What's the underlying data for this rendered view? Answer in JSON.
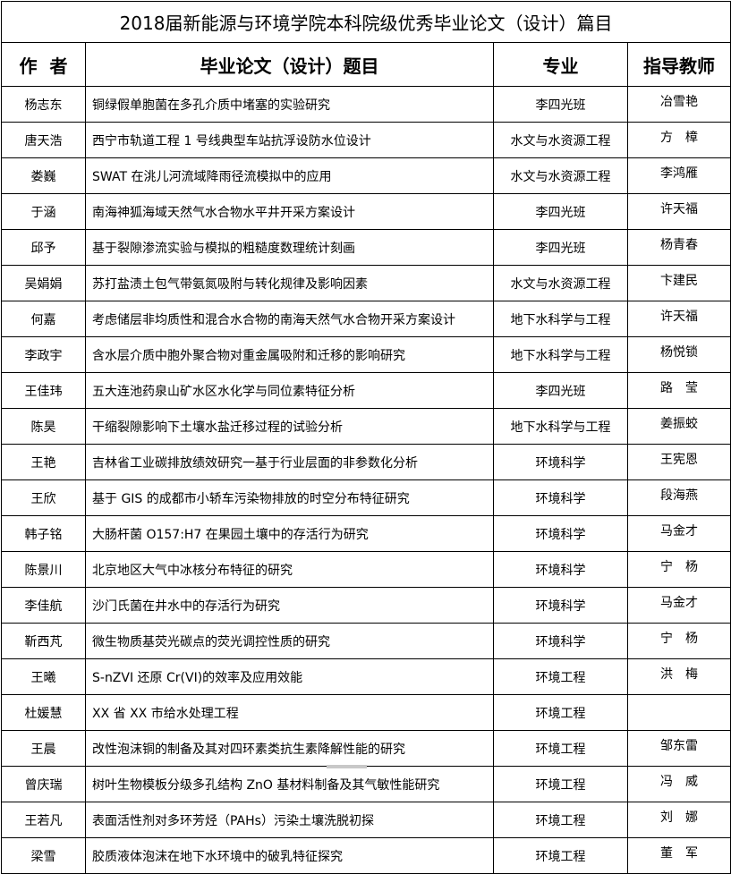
{
  "title": "2018届新能源与环境学院本科院级优秀毕业论文（设计）篇目",
  "headers": {
    "author": "作  者",
    "thesis": "毕业论文（设计）题目",
    "major": "专业",
    "advisor": "指导教师"
  },
  "rows": [
    {
      "author": "杨志东",
      "thesis": "铜绿假单胞菌在多孔介质中堵塞的实验研究",
      "major": "李四光班",
      "advisor": "冶雪艳"
    },
    {
      "author": "唐天浩",
      "thesis": "西宁市轨道工程 1 号线典型车站抗浮设防水位设计",
      "major": "水文与水资源工程",
      "advisor": "方　樟"
    },
    {
      "author": "娄巍",
      "thesis": "SWAT 在洮儿河流域降雨径流模拟中的应用",
      "major": "水文与水资源工程",
      "advisor": "李鸿雁"
    },
    {
      "author": "于涵",
      "thesis": "南海神狐海域天然气水合物水平井开采方案设计",
      "major": "李四光班",
      "advisor": "许天福"
    },
    {
      "author": "邱予",
      "thesis": "基于裂隙渗流实验与模拟的粗糙度数理统计刻画",
      "major": "李四光班",
      "advisor": "杨青春"
    },
    {
      "author": "吴娟娟",
      "thesis": "苏打盐渍土包气带氨氮吸附与转化规律及影响因素",
      "major": "水文与水资源工程",
      "advisor": "卞建民"
    },
    {
      "author": "何嘉",
      "thesis": "考虑储层非均质性和混合水合物的南海天然气水合物开采方案设计",
      "major": "地下水科学与工程",
      "advisor": "许天福"
    },
    {
      "author": "李政宇",
      "thesis": "含水层介质中胞外聚合物对重金属吸附和迁移的影响研究",
      "major": "地下水科学与工程",
      "advisor": "杨悦锁"
    },
    {
      "author": "王佳玮",
      "thesis": "五大连池药泉山矿水区水化学与同位素特征分析",
      "major": "李四光班",
      "advisor": "路　莹"
    },
    {
      "author": "陈昊",
      "thesis": "干缩裂隙影响下土壤水盐迁移过程的试验分析",
      "major": "地下水科学与工程",
      "advisor": "姜振蛟"
    },
    {
      "author": "王艳",
      "thesis": "吉林省工业碳排放绩效研究一基于行业层面的非参数化分析",
      "major": "环境科学",
      "advisor": "王宪恩"
    },
    {
      "author": "王欣",
      "thesis": "基于 GIS 的成都市小轿车污染物排放的时空分布特征研究",
      "major": "环境科学",
      "advisor": "段海燕"
    },
    {
      "author": "韩子铭",
      "thesis": "大肠杆菌 O157:H7 在果园土壤中的存活行为研究",
      "major": "环境科学",
      "advisor": "马金才"
    },
    {
      "author": "陈景川",
      "thesis": "北京地区大气中冰核分布特征的研究",
      "major": "环境科学",
      "advisor": "宁　杨"
    },
    {
      "author": "李佳航",
      "thesis": "沙门氏菌在井水中的存活行为研究",
      "major": "环境科学",
      "advisor": "马金才"
    },
    {
      "author": "靳西芃",
      "thesis": "微生物质基荧光碳点的荧光调控性质的研究",
      "major": "环境科学",
      "advisor": "宁　杨"
    },
    {
      "author": "王曦",
      "thesis": "S-nZVI 还原 Cr(VI)的效率及应用效能",
      "major": "环境工程",
      "advisor": "洪　梅"
    },
    {
      "author": "杜媛慧",
      "thesis": "XX 省 XX 市给水处理工程",
      "major": "环境工程",
      "advisor": ""
    },
    {
      "author": "王晨",
      "thesis": "改性泡沫铜的制备及其对四环素类抗生素降解性能的研究",
      "major": "环境工程",
      "advisor": "邹东雷"
    },
    {
      "author": "曾庆瑞",
      "thesis": "树叶生物模板分级多孔结构 ZnO 基材料制备及其气敏性能研究",
      "major": "环境工程",
      "advisor": "冯　威"
    },
    {
      "author": "王若凡",
      "thesis": "表面活性剂对多环芳烃（PAHs）污染土壤洗脱初探",
      "major": "环境工程",
      "advisor": "刘　娜"
    },
    {
      "author": "梁雪",
      "thesis": "胶质液体泡沫在地下水环境中的破乳特征探究",
      "major": "环境工程",
      "advisor": "董　军"
    }
  ]
}
